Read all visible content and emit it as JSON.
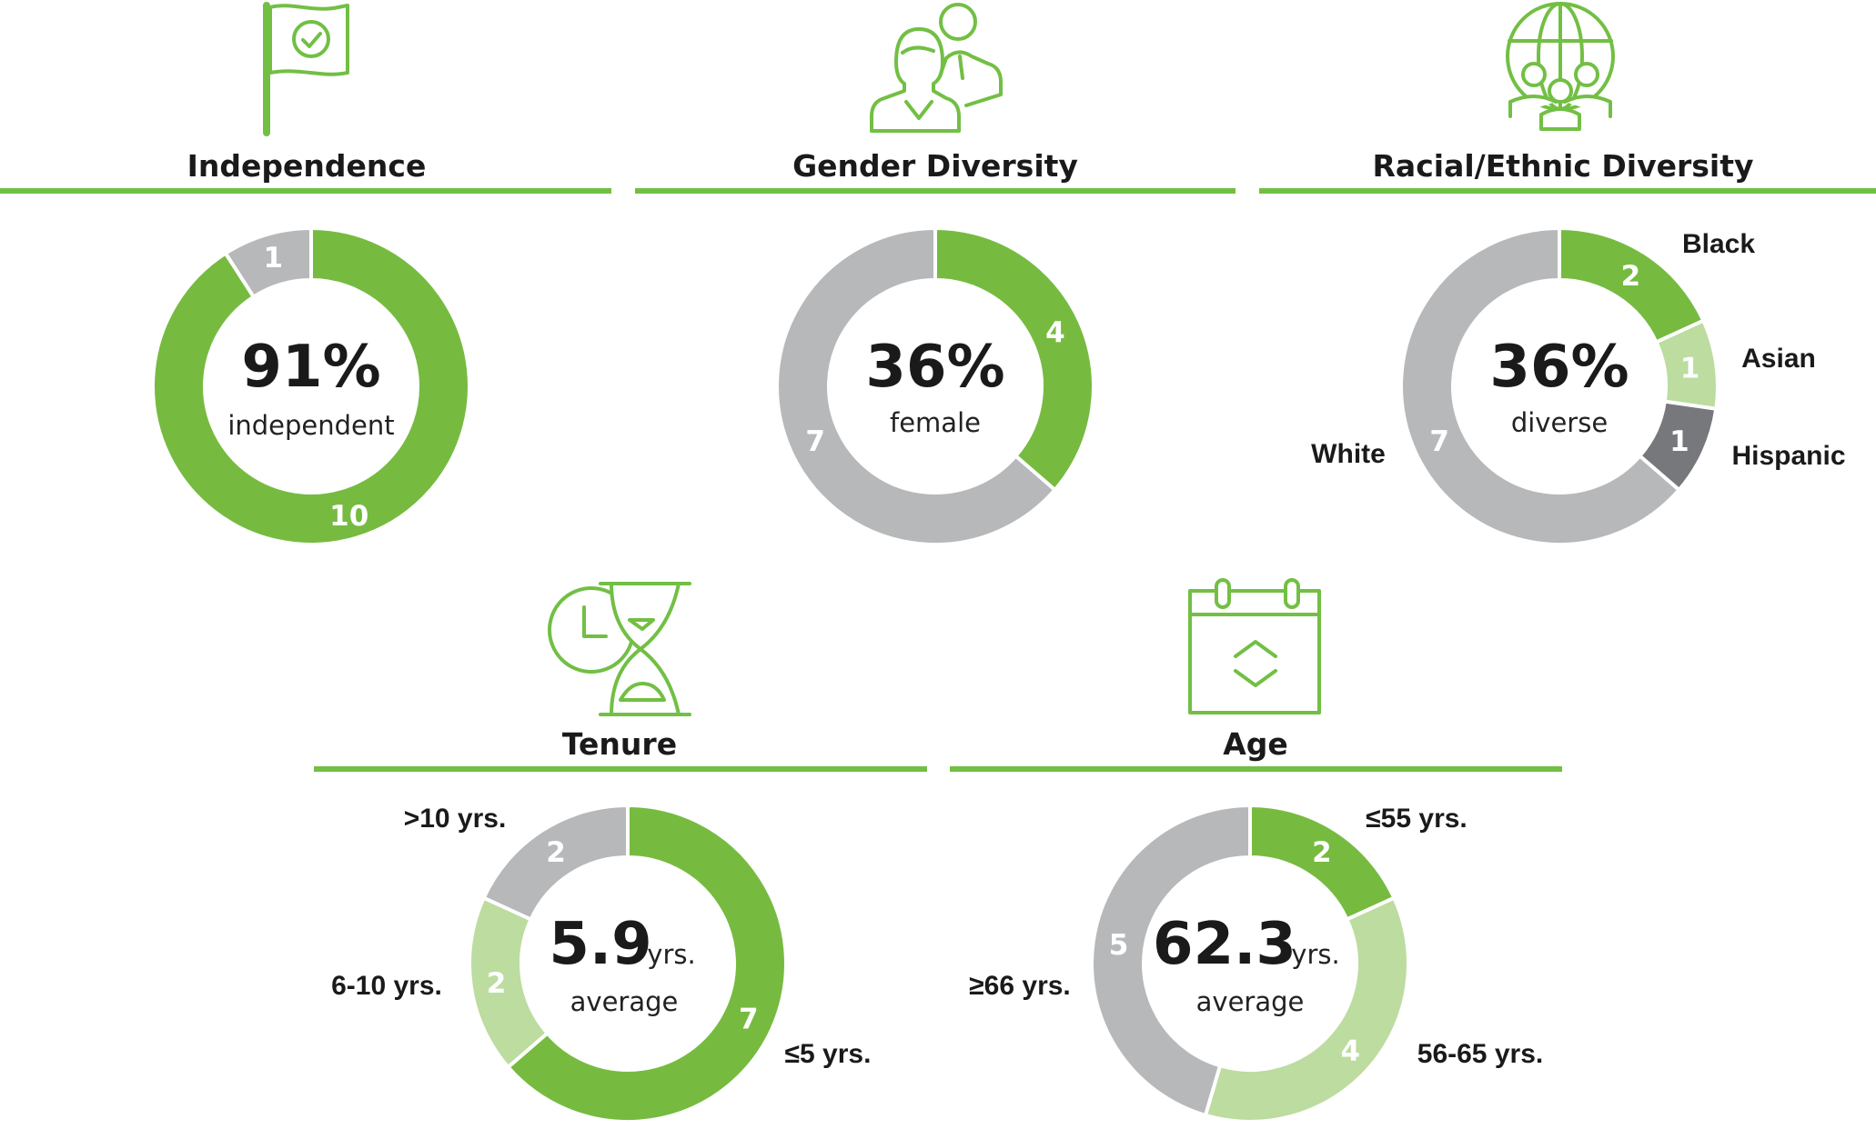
{
  "colors": {
    "accent": "#72bf44",
    "green": "#76bb40",
    "light_green": "#bcdca0",
    "gray": "#b7b8ba",
    "dark_gray": "#77787b",
    "text": "#1a1a1a"
  },
  "chart_data": [
    {
      "type": "pie",
      "variant": "donut",
      "title": "Independence",
      "icon": "flag-check-icon",
      "center_value": "91%",
      "center_label": "independent",
      "slices": [
        {
          "label": "",
          "value": 10,
          "color": "#76bb40"
        },
        {
          "label": "",
          "value": 1,
          "color": "#b7b8ba"
        }
      ]
    },
    {
      "type": "pie",
      "variant": "donut",
      "title": "Gender Diversity",
      "icon": "people-icon",
      "center_value": "36%",
      "center_label": "female",
      "slices": [
        {
          "label": "",
          "value": 4,
          "color": "#76bb40"
        },
        {
          "label": "",
          "value": 7,
          "color": "#b7b8ba"
        }
      ]
    },
    {
      "type": "pie",
      "variant": "donut",
      "title": "Racial/Ethnic Diversity",
      "icon": "globe-people-icon",
      "center_value": "36%",
      "center_label": "diverse",
      "slices": [
        {
          "label": "Black",
          "value": 2,
          "color": "#76bb40"
        },
        {
          "label": "Asian",
          "value": 1,
          "color": "#bcdca0"
        },
        {
          "label": "Hispanic",
          "value": 1,
          "color": "#77787b"
        },
        {
          "label": "White",
          "value": 7,
          "color": "#b7b8ba"
        }
      ]
    },
    {
      "type": "pie",
      "variant": "donut",
      "title": "Tenure",
      "icon": "hourglass-clock-icon",
      "center_value": "5.9",
      "center_unit": "yrs.",
      "center_label": "average",
      "slices": [
        {
          "label": "≤5 yrs.",
          "value": 7,
          "color": "#76bb40"
        },
        {
          "label": "6-10 yrs.",
          "value": 2,
          "color": "#bcdca0"
        },
        {
          "label": ">10 yrs.",
          "value": 2,
          "color": "#b7b8ba"
        }
      ]
    },
    {
      "type": "pie",
      "variant": "donut",
      "title": "Age",
      "icon": "calendar-icon",
      "center_value": "62.3",
      "center_unit": "yrs.",
      "center_label": "average",
      "slices": [
        {
          "label": "≤55 yrs.",
          "value": 2,
          "color": "#76bb40"
        },
        {
          "label": "56-65 yrs.",
          "value": 4,
          "color": "#bcdca0"
        },
        {
          "label": "≥66 yrs.",
          "value": 5,
          "color": "#b7b8ba"
        }
      ]
    }
  ]
}
